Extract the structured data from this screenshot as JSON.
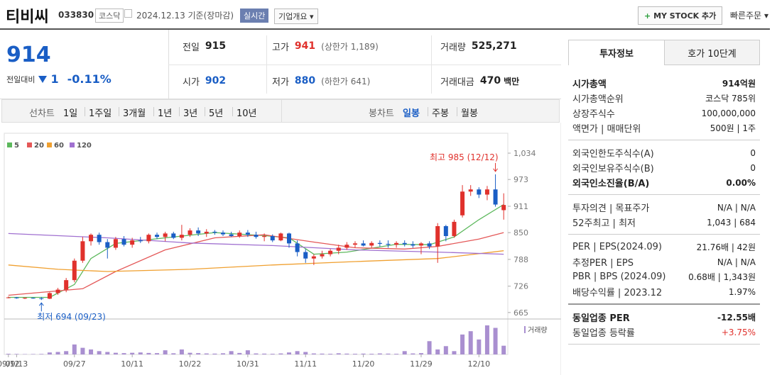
{
  "header": {
    "name": "티비씨",
    "code": "033830",
    "market": "코스닥",
    "date": "2024.12.13 기준(장마감)",
    "realtime": "실시간",
    "overview": "기업개요",
    "mystock": "MY STOCK 추가",
    "quick_order": "빠른주문"
  },
  "price": {
    "current": "914",
    "change_label": "전일대비",
    "change": "1",
    "change_pct": "-0.11%"
  },
  "summary": [
    {
      "label": "전일",
      "value": "915",
      "color": "#222"
    },
    {
      "label": "고가",
      "value": "941",
      "note": "(상한가 1,189)",
      "color": "#e0312c"
    },
    {
      "label": "거래량",
      "value": "525,271",
      "color": "#222"
    },
    {
      "label": "시가",
      "value": "902",
      "color": "#1a5ec5"
    },
    {
      "label": "저가",
      "value": "880",
      "note": "(하한가 641)",
      "color": "#1a5ec5"
    },
    {
      "label": "거래대금",
      "value": "470",
      "note": "백만",
      "color": "#222"
    }
  ],
  "toolbar": {
    "line_chart": "선차트",
    "line_periods": [
      "1일",
      "1주일",
      "3개월",
      "1년",
      "3년",
      "5년",
      "10년"
    ],
    "candle_chart": "봉차트",
    "candle_periods": [
      "일봉",
      "주봉",
      "월봉"
    ]
  },
  "chart_data": {
    "type": "candlestick",
    "up_color": "#e0312c",
    "down_color": "#1a5ec5",
    "categories": [
      "09/12",
      "09/13",
      null,
      null,
      null,
      null,
      null,
      null,
      "09/27",
      null,
      null,
      null,
      null,
      null,
      null,
      "10/11",
      null,
      null,
      null,
      null,
      null,
      null,
      "10/22",
      null,
      null,
      null,
      null,
      null,
      null,
      "10/31",
      null,
      null,
      null,
      null,
      null,
      null,
      "11/11",
      null,
      null,
      null,
      null,
      null,
      null,
      "11/20",
      null,
      null,
      null,
      null,
      null,
      null,
      "11/29",
      null,
      null,
      null,
      null,
      null,
      null,
      "12/10",
      null,
      null,
      null
    ],
    "candles": [
      [
        700,
        702,
        698,
        700
      ],
      [
        700,
        701,
        697,
        698
      ],
      [
        698,
        700,
        696,
        699
      ],
      [
        699,
        700,
        697,
        698
      ],
      [
        698,
        701,
        694,
        697
      ],
      [
        697,
        712,
        696,
        710
      ],
      [
        710,
        722,
        706,
        718
      ],
      [
        718,
        745,
        712,
        740
      ],
      [
        740,
        790,
        735,
        785
      ],
      [
        785,
        840,
        780,
        830
      ],
      [
        830,
        848,
        820,
        845
      ],
      [
        845,
        850,
        822,
        828
      ],
      [
        828,
        835,
        790,
        815
      ],
      [
        815,
        840,
        810,
        835
      ],
      [
        835,
        842,
        818,
        822
      ],
      [
        822,
        838,
        815,
        832
      ],
      [
        832,
        840,
        826,
        830
      ],
      [
        830,
        848,
        825,
        845
      ],
      [
        845,
        850,
        835,
        840
      ],
      [
        840,
        852,
        830,
        848
      ],
      [
        848,
        852,
        835,
        838
      ],
      [
        838,
        868,
        832,
        845
      ],
      [
        845,
        860,
        840,
        855
      ],
      [
        855,
        862,
        842,
        848
      ],
      [
        848,
        858,
        840,
        852
      ],
      [
        852,
        856,
        845,
        850
      ],
      [
        850,
        855,
        842,
        846
      ],
      [
        846,
        852,
        840,
        842
      ],
      [
        842,
        855,
        838,
        850
      ],
      [
        850,
        856,
        840,
        845
      ],
      [
        845,
        852,
        836,
        840
      ],
      [
        840,
        848,
        830,
        842
      ],
      [
        842,
        846,
        828,
        832
      ],
      [
        832,
        850,
        830,
        848
      ],
      [
        848,
        850,
        815,
        825
      ],
      [
        825,
        832,
        795,
        805
      ],
      [
        805,
        812,
        780,
        790
      ],
      [
        790,
        800,
        775,
        795
      ],
      [
        795,
        808,
        790,
        800
      ],
      [
        800,
        812,
        795,
        808
      ],
      [
        808,
        822,
        800,
        815
      ],
      [
        815,
        828,
        810,
        822
      ],
      [
        822,
        830,
        815,
        825
      ],
      [
        825,
        832,
        818,
        820
      ],
      [
        820,
        830,
        815,
        826
      ],
      [
        826,
        832,
        818,
        824
      ],
      [
        824,
        832,
        815,
        822
      ],
      [
        822,
        830,
        815,
        826
      ],
      [
        826,
        832,
        818,
        823
      ],
      [
        823,
        830,
        815,
        820
      ],
      [
        820,
        828,
        800,
        825
      ],
      [
        825,
        830,
        812,
        818
      ],
      [
        818,
        872,
        780,
        865
      ],
      [
        865,
        868,
        830,
        842
      ],
      [
        842,
        880,
        838,
        875
      ],
      [
        890,
        960,
        885,
        945
      ],
      [
        945,
        960,
        935,
        950
      ],
      [
        950,
        955,
        930,
        938
      ],
      [
        938,
        958,
        925,
        950
      ],
      [
        950,
        985,
        910,
        915
      ],
      [
        902,
        941,
        880,
        914
      ]
    ],
    "series": [
      {
        "name": "5",
        "color": "#5cb85c",
        "x": [
          0,
          5,
          8,
          10,
          13,
          19,
          25,
          31,
          34,
          37,
          41,
          47,
          51,
          54,
          57,
          60
        ],
        "values": [
          700,
          700,
          730,
          790,
          825,
          838,
          850,
          843,
          838,
          800,
          805,
          823,
          822,
          840,
          880,
          915
        ]
      },
      {
        "name": "20",
        "color": "#e45858",
        "x": [
          0,
          9,
          13,
          19,
          25,
          31,
          37,
          42,
          48,
          52,
          57,
          60
        ],
        "values": [
          705,
          720,
          760,
          810,
          838,
          845,
          828,
          815,
          812,
          818,
          835,
          850
        ]
      },
      {
        "name": "60",
        "color": "#f0a030",
        "x": [
          0,
          6,
          12,
          22,
          32,
          42,
          52,
          60
        ],
        "values": [
          775,
          765,
          760,
          765,
          775,
          783,
          790,
          808
        ]
      },
      {
        "name": "120",
        "color": "#a070d0",
        "x": [
          0,
          12,
          22,
          32,
          42,
          52,
          60
        ],
        "values": [
          848,
          838,
          826,
          820,
          810,
          805,
          800
        ]
      }
    ],
    "ylim": [
      650,
      1080
    ],
    "yticks": [
      {
        "value": 1034,
        "label": "1,034"
      },
      973,
      911,
      850,
      788,
      726,
      665
    ],
    "grid": false,
    "annotations": {
      "high": "최고 985 (12/12)",
      "low": "최저 694 (09/23)"
    },
    "volume": {
      "name": "거래량",
      "color": "#a98fd0",
      "values": [
        40000,
        30000,
        20000,
        25000,
        30000,
        120000,
        150000,
        200000,
        600000,
        400000,
        300000,
        200000,
        150000,
        100000,
        80000,
        100000,
        120000,
        90000,
        80000,
        250000,
        70000,
        300000,
        100000,
        80000,
        60000,
        50000,
        70000,
        200000,
        90000,
        250000,
        60000,
        50000,
        40000,
        60000,
        120000,
        200000,
        150000,
        60000,
        50000,
        40000,
        70000,
        50000,
        40000,
        50000,
        40000,
        60000,
        50000,
        40000,
        200000,
        60000,
        80000,
        800000,
        300000,
        500000,
        200000,
        1200000,
        1400000,
        900000,
        1750000,
        1600000,
        525271
      ]
    }
  },
  "invest": {
    "tabs": [
      "투자정보",
      "호가 10단계"
    ],
    "groups": [
      [
        {
          "label": "시가총액",
          "value": "914억원",
          "bold": true
        },
        {
          "label": "시가총액순위",
          "value": "코스닥 785위"
        },
        {
          "label": "상장주식수",
          "value": "100,000,000"
        },
        {
          "label": "액면가 | 매매단위",
          "value": "500원 | 1주"
        }
      ],
      [
        {
          "label": "외국인한도주식수(A)",
          "value": "0"
        },
        {
          "label": "외국인보유주식수(B)",
          "value": "0"
        },
        {
          "label": "외국인소진율(B/A)",
          "value": "0.00%",
          "bold": true
        }
      ],
      [
        {
          "label": "투자의견 | 목표주가",
          "value": "N/A | N/A"
        },
        {
          "label": "52주최고 | 최저",
          "value": "1,043 | 684"
        }
      ],
      [
        {
          "label": "PER | EPS(2024.09)",
          "value": "21.76배 | 42원"
        },
        {
          "label": "추정PER | EPS",
          "value": "N/A | N/A"
        },
        {
          "label": "PBR | BPS (2024.09)",
          "value": "0.68배 | 1,343원"
        },
        {
          "label": "배당수익률 | 2023.12",
          "value": "1.97%"
        }
      ],
      [
        {
          "label": "동일업종 PER",
          "value": "-12.55배",
          "bold": true
        },
        {
          "label": "동일업종 등락률",
          "value": "+3.75%",
          "color": "#e0312c"
        }
      ]
    ]
  }
}
